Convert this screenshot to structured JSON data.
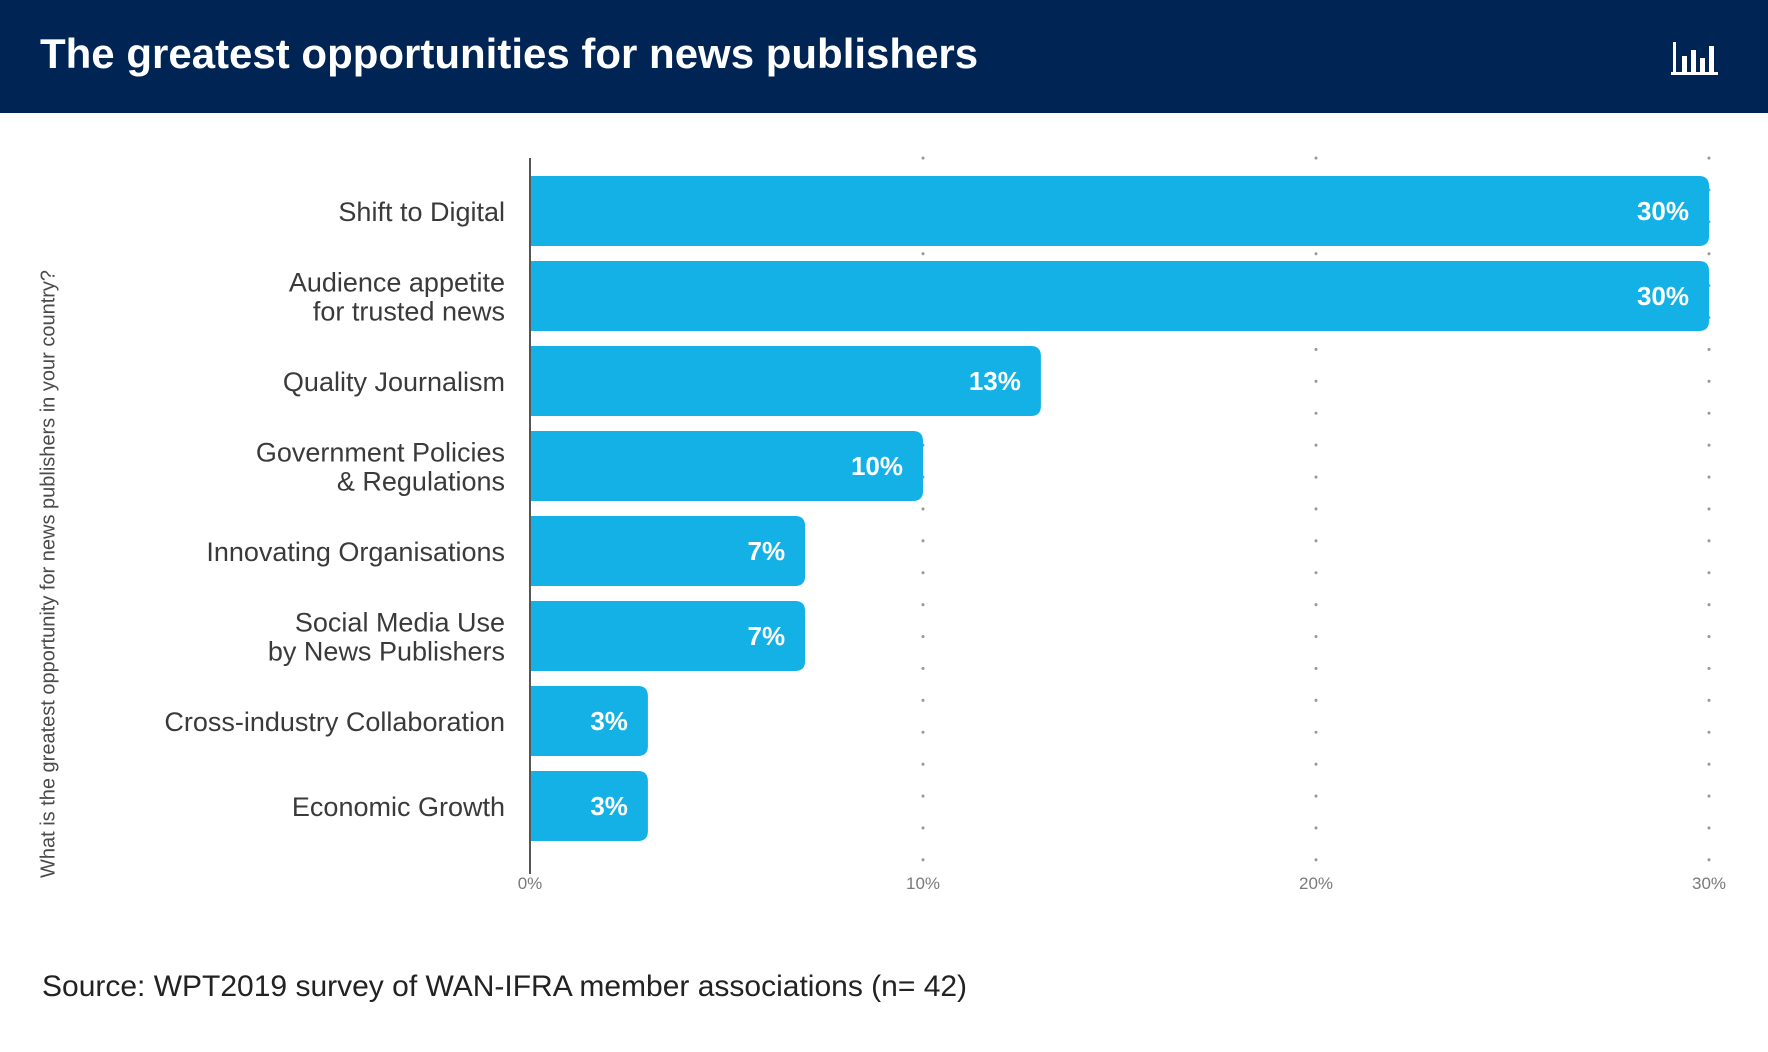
{
  "header": {
    "title": "The greatest opportunities for news publishers",
    "icon": "bar-chart-icon",
    "background_color": "#002454"
  },
  "chart_data": {
    "type": "bar",
    "orientation": "horizontal",
    "categories": [
      [
        "Shift to Digital"
      ],
      [
        "Audience appetite",
        "for trusted news"
      ],
      [
        "Quality Journalism"
      ],
      [
        "Government Policies",
        "& Regulations"
      ],
      [
        "Innovating Organisations"
      ],
      [
        "Social Media Use",
        "by News Publishers"
      ],
      [
        "Cross-industry Collaboration"
      ],
      [
        "Economic Growth"
      ]
    ],
    "values": [
      30,
      30,
      13,
      10,
      7,
      7,
      3,
      3
    ],
    "data_labels": [
      "30%",
      "30%",
      "13%",
      "10%",
      "7%",
      "7%",
      "3%",
      "3%"
    ],
    "xlim": [
      0,
      30
    ],
    "x_ticks": [
      0,
      10,
      20,
      30
    ],
    "x_tick_labels": [
      "0%",
      "10%",
      "20%",
      "30%"
    ],
    "ylabel": "What is the greatest opportunity for news publishers in your country?",
    "xlabel": "",
    "grid": "dotted vertical",
    "bar_color": "#13b1e6",
    "label_color": "#ffffff"
  },
  "footer": {
    "source": "Source: WPT2019 survey of WAN-IFRA member associations (n= 42)"
  }
}
